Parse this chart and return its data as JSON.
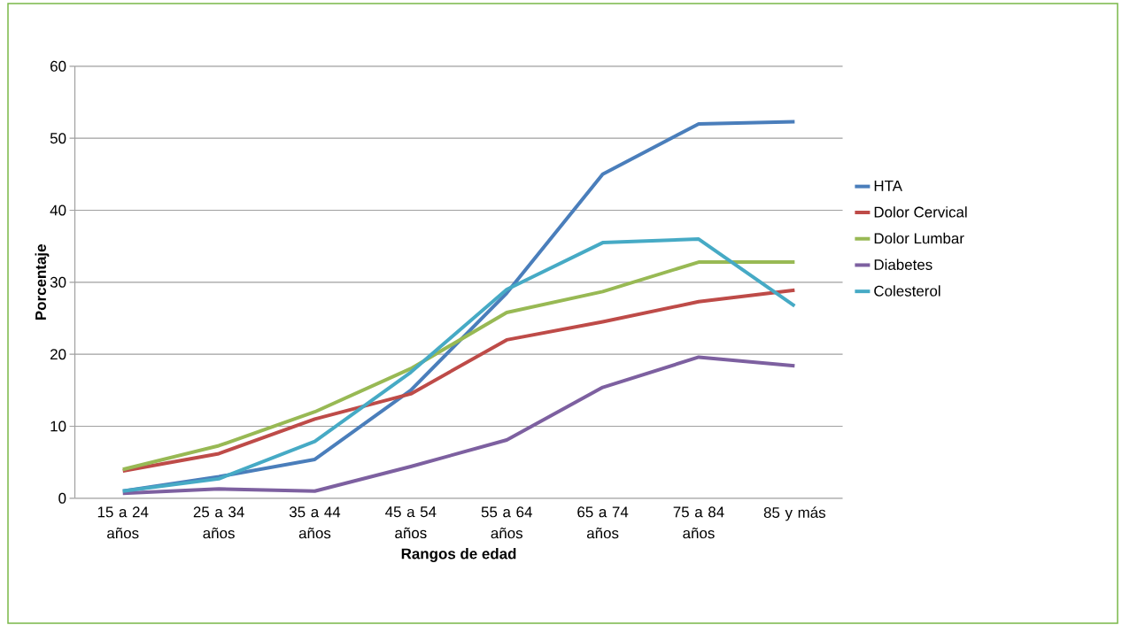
{
  "chart_data": {
    "type": "line",
    "xlabel": "Rangos de edad",
    "ylabel": "Porcentaje",
    "categories": [
      "15 a 24 años",
      "25 a 34 años",
      "35 a 44 años",
      "45 a 54 años",
      "55 a 64 años",
      "65 a 74 años",
      "75 a 84 años",
      "85 y más"
    ],
    "series": [
      {
        "name": "HTA",
        "color": "#4a7ebb",
        "values": [
          1.0,
          3.0,
          5.4,
          15,
          28.5,
          45,
          52,
          52.3
        ]
      },
      {
        "name": "Dolor Cervical",
        "color": "#be4b48",
        "values": [
          3.8,
          6.2,
          11,
          14.5,
          22,
          24.5,
          27.3,
          28.9
        ]
      },
      {
        "name": "Dolor Lumbar",
        "color": "#98b954",
        "values": [
          4.0,
          7.3,
          12,
          18,
          25.8,
          28.7,
          32.8,
          32.8
        ]
      },
      {
        "name": "Diabetes",
        "color": "#7d60a0",
        "values": [
          0.7,
          1.3,
          1.0,
          4.4,
          8.1,
          15.4,
          19.6,
          18.4
        ]
      },
      {
        "name": "Colesterol",
        "color": "#46aac5",
        "values": [
          1.0,
          2.7,
          7.9,
          17.5,
          29,
          35.5,
          36,
          26.7
        ]
      }
    ],
    "ylim": [
      0,
      60
    ],
    "yticks": [
      0,
      10,
      20,
      30,
      40,
      50,
      60
    ],
    "grid": "y",
    "legend": "right",
    "marker": "none",
    "line_style": "solid"
  }
}
